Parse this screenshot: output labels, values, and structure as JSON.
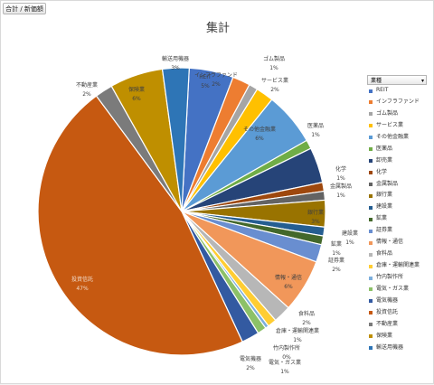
{
  "tab_label": "合計 / 新価額",
  "chart_data": {
    "type": "pie",
    "title": "集計",
    "legend_header": "業種",
    "slices": [
      {
        "label": "REIT",
        "value": 5,
        "pct_label": "5%",
        "color": "#4472C4"
      },
      {
        "label": "インフラファンド",
        "value": 2,
        "pct_label": "2%",
        "color": "#ED7D31"
      },
      {
        "label": "ゴム製品",
        "value": 1,
        "pct_label": "1%",
        "color": "#A5A5A5"
      },
      {
        "label": "サービス業",
        "value": 2,
        "pct_label": "2%",
        "color": "#FFC000"
      },
      {
        "label": "その他金融業",
        "value": 6,
        "pct_label": "6%",
        "color": "#5B9BD5"
      },
      {
        "label": "医薬品",
        "value": 1,
        "pct_label": "1%",
        "color": "#70AD47"
      },
      {
        "label": "卸売業",
        "value": 4,
        "pct_label": "",
        "color": "#264478"
      },
      {
        "label": "化学",
        "value": 1,
        "pct_label": "1%",
        "color": "#9E480E"
      },
      {
        "label": "金属製品",
        "value": 1,
        "pct_label": "1%",
        "color": "#636363"
      },
      {
        "label": "銀行業",
        "value": 3,
        "pct_label": "3%",
        "color": "#997300"
      },
      {
        "label": "建設業",
        "value": 1,
        "pct_label": "1%",
        "color": "#255E91"
      },
      {
        "label": "鉱業",
        "value": 1,
        "pct_label": "1%",
        "color": "#43682B"
      },
      {
        "label": "証券業",
        "value": 2,
        "pct_label": "2%",
        "color": "#698ED0"
      },
      {
        "label": "情報・通信",
        "value": 6,
        "pct_label": "6%",
        "color": "#F1975A"
      },
      {
        "label": "食料品",
        "value": 2,
        "pct_label": "2%",
        "color": "#B7B7B7"
      },
      {
        "label": "倉庫・運輸関連業",
        "value": 1,
        "pct_label": "1%",
        "color": "#FFCD33"
      },
      {
        "label": "竹内製作所",
        "value": 0.4,
        "pct_label": "0%",
        "color": "#7CAFDD"
      },
      {
        "label": "電気・ガス業",
        "value": 1,
        "pct_label": "1%",
        "color": "#8CC168"
      },
      {
        "label": "電気機器",
        "value": 2,
        "pct_label": "2%",
        "color": "#335AA1"
      },
      {
        "label": "投資信託",
        "value": 47,
        "pct_label": "47%",
        "color": "#C65911"
      },
      {
        "label": "不動産業",
        "value": 2,
        "pct_label": "2%",
        "color": "#7B7B7B"
      },
      {
        "label": "保険業",
        "value": 6,
        "pct_label": "6%",
        "color": "#BF8F00"
      },
      {
        "label": "輸送用機器",
        "value": 3,
        "pct_label": "3%",
        "color": "#2E75B6"
      }
    ]
  }
}
